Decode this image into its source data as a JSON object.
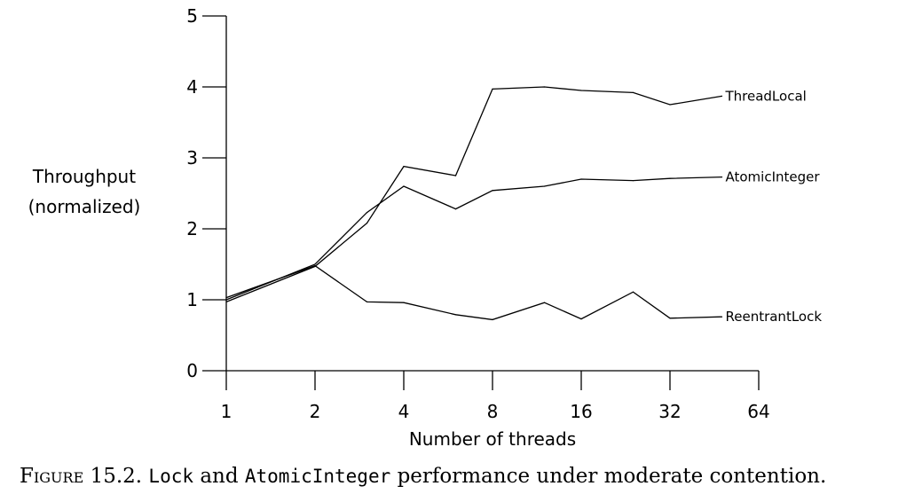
{
  "chart_data": {
    "type": "line",
    "ylabel_lines": [
      "Throughput",
      "(normalized)"
    ],
    "xlabel": "Number of threads",
    "x_scale": "log2",
    "x_ticks": [
      1,
      2,
      4,
      8,
      16,
      32,
      64
    ],
    "y_ticks": [
      0,
      1,
      2,
      3,
      4,
      5
    ],
    "xlim": [
      1,
      64
    ],
    "ylim": [
      0,
      5
    ],
    "grid": false,
    "series": [
      {
        "name": "ThreadLocal",
        "x": [
          1,
          2,
          3,
          4,
          6,
          8,
          12,
          16,
          24,
          32,
          48
        ],
        "y": [
          0.97,
          1.47,
          2.08,
          2.88,
          2.75,
          3.97,
          4.0,
          3.95,
          3.92,
          3.75,
          3.87
        ]
      },
      {
        "name": "AtomicInteger",
        "x": [
          1,
          2,
          3,
          4,
          6,
          8,
          12,
          16,
          24,
          32,
          48
        ],
        "y": [
          1.0,
          1.5,
          2.23,
          2.6,
          2.28,
          2.54,
          2.6,
          2.7,
          2.68,
          2.71,
          2.73
        ]
      },
      {
        "name": "ReentrantLock",
        "x": [
          1,
          2,
          3,
          4,
          6,
          8,
          12,
          16,
          24,
          32,
          48
        ],
        "y": [
          1.03,
          1.48,
          0.97,
          0.96,
          0.79,
          0.72,
          0.96,
          0.73,
          1.11,
          0.74,
          0.76
        ]
      }
    ]
  },
  "caption": {
    "figure_label": "Figure 15.2.",
    "part1": "Lock",
    "part2": "and",
    "part3": "AtomicInteger",
    "part4": "performance under moderate contention."
  }
}
